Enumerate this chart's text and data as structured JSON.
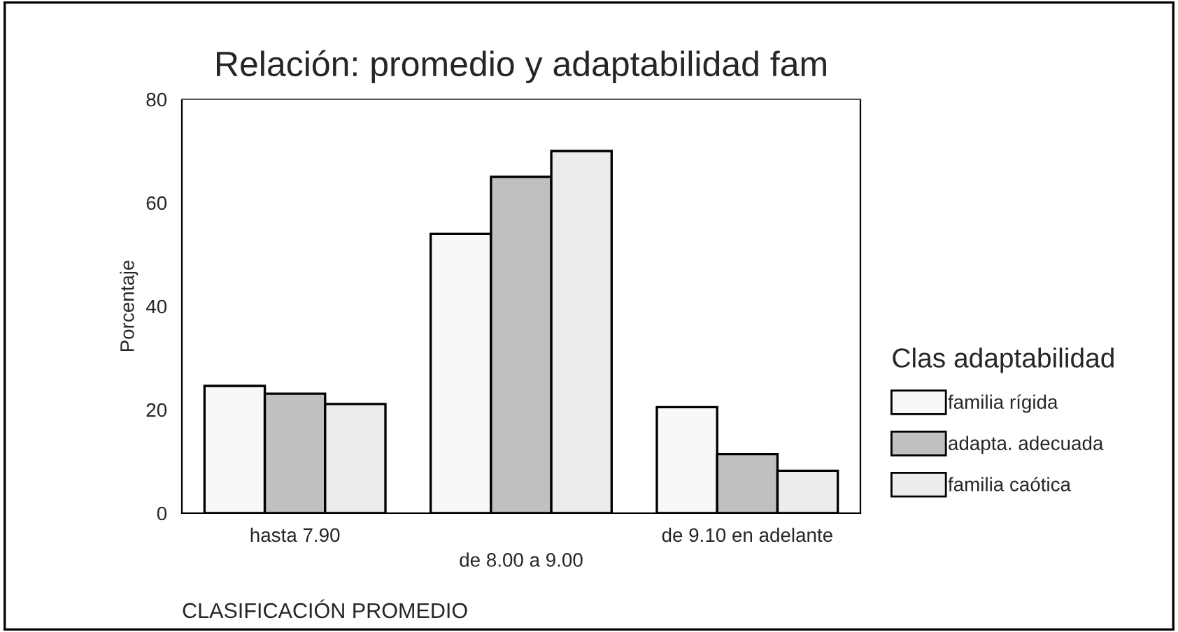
{
  "chart_data": {
    "type": "bar",
    "title": "Relación: promedio y adaptabilidad fam",
    "xlabel": "CLASIFICACIÓN PROMEDIO",
    "ylabel": "Porcentaje",
    "legend_title": "Clas adaptabilidad",
    "categories": [
      "hasta 7.90",
      "de 8.00 a 9.00",
      "de 9.10 en adelante"
    ],
    "series": [
      {
        "name": "familia rígida",
        "color": "#f8f8f8",
        "values": [
          24.6,
          54,
          20.5
        ]
      },
      {
        "name": "adapta. adecuada",
        "color": "#c0c0c0",
        "values": [
          23.1,
          65,
          11.4
        ]
      },
      {
        "name": "familia caótica",
        "color": "#ececec",
        "values": [
          21.1,
          70,
          8.2
        ]
      }
    ],
    "ylim": [
      0,
      80
    ],
    "yticks": [
      0,
      20,
      40,
      60,
      80
    ],
    "grid": false,
    "legend": "right"
  }
}
